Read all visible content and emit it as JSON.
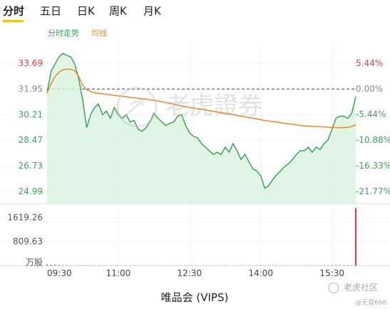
{
  "tabs": [
    "分时",
    "五日",
    "日K",
    "周K",
    "月K"
  ],
  "watermark": "老虎證券",
  "footer": "唯品会 (VIPS)",
  "brand": "老虎社区",
  "user": "@无双666",
  "chart_data": [
    {
      "type": "line",
      "categories": [
        "09:30",
        null,
        null,
        null,
        null,
        null,
        null,
        null,
        null,
        null,
        null,
        null,
        null,
        null,
        null,
        null,
        null,
        null,
        "11:00",
        null,
        null,
        null,
        null,
        null,
        null,
        null,
        null,
        null,
        null,
        null,
        null,
        null,
        null,
        null,
        null,
        null,
        "12:30",
        null,
        null,
        null,
        null,
        null,
        null,
        null,
        null,
        null,
        null,
        null,
        null,
        null,
        null,
        null,
        null,
        null,
        "14:00",
        null,
        null,
        null,
        null,
        null,
        null,
        null,
        null,
        null,
        null,
        null,
        null,
        null,
        null,
        null,
        null,
        null,
        "15:30",
        null,
        null,
        null,
        null,
        null,
        null
      ],
      "series": [
        {
          "name": "分时走势",
          "color": "#3aa55a",
          "fill": "#d9f2de",
          "values": [
            31.69,
            33.15,
            33.64,
            34.13,
            34.37,
            34.23,
            34.13,
            33.64,
            32.66,
            31.2,
            29.34,
            30.22,
            30.71,
            30.95,
            30.22,
            30.46,
            29.98,
            30.71,
            30.22,
            29.98,
            30.22,
            29.73,
            29.83,
            29.24,
            29.1,
            29.34,
            29.73,
            30.32,
            29.98,
            29.73,
            29.49,
            29.63,
            29.73,
            30.12,
            30.22,
            29.49,
            29.0,
            28.75,
            28.66,
            28.27,
            28.02,
            27.78,
            27.53,
            27.68,
            27.53,
            28.02,
            27.68,
            28.27,
            27.78,
            27.19,
            27.53,
            27.04,
            26.55,
            26.41,
            26.07,
            25.24,
            25.43,
            25.82,
            26.16,
            26.41,
            26.7,
            26.9,
            27.19,
            27.53,
            27.78,
            27.78,
            28.02,
            27.68,
            28.02,
            27.87,
            28.27,
            28.51,
            29.24,
            29.98,
            30.12,
            30.12,
            29.98,
            30.32,
            31.44
          ]
        },
        {
          "name": "均线",
          "color": "#e8892b",
          "values": [
            31.69,
            32.3,
            32.8,
            33.1,
            33.25,
            33.3,
            33.3,
            33.2,
            32.8,
            32.2,
            31.9,
            31.8,
            31.7,
            31.67,
            31.64,
            31.6,
            31.56,
            31.53,
            31.5,
            31.47,
            31.43,
            31.4,
            31.37,
            31.33,
            31.3,
            31.27,
            31.23,
            31.2,
            31.15,
            31.09,
            31.04,
            30.98,
            30.93,
            30.87,
            30.82,
            30.76,
            30.71,
            30.67,
            30.62,
            30.58,
            30.54,
            30.49,
            30.45,
            30.41,
            30.36,
            30.32,
            30.27,
            30.22,
            30.17,
            30.12,
            30.08,
            30.03,
            29.98,
            29.93,
            29.88,
            29.83,
            29.79,
            29.75,
            29.72,
            29.68,
            29.64,
            29.6,
            29.57,
            29.53,
            29.49,
            29.47,
            29.46,
            29.44,
            29.42,
            29.41,
            29.39,
            29.37,
            29.36,
            29.34,
            29.34,
            29.35,
            29.37,
            29.42,
            29.54
          ]
        }
      ],
      "ylim": [
        24.2,
        34.6
      ],
      "yticks": [
        33.69,
        31.95,
        30.21,
        28.47,
        26.73,
        24.99
      ],
      "reference": 31.95,
      "y2lim": [
        -24.26,
        8.29
      ],
      "y2ticks": [
        {
          "value": 5.44,
          "label": "5.44%"
        },
        {
          "value": 0,
          "label": "0.00%"
        },
        {
          "value": -5.44,
          "label": "-5.44%"
        },
        {
          "value": -10.88,
          "label": "-10.88%"
        },
        {
          "value": -16.33,
          "label": "-16.33%"
        },
        {
          "value": -21.77,
          "label": "-21.77%"
        }
      ],
      "up_color": "#e03c3c",
      "flat_color": "#888888",
      "down_color": "#3aa55a",
      "grid": true
    },
    {
      "type": "bar",
      "values": [
        40,
        30,
        25,
        20,
        15,
        14,
        12,
        10,
        12,
        15,
        14,
        10,
        9,
        8,
        10,
        9,
        8,
        9,
        7,
        8,
        7,
        9,
        8,
        7,
        8,
        7,
        6,
        8,
        7,
        6,
        7,
        6,
        7,
        8,
        6,
        7,
        8,
        7,
        6,
        8,
        7,
        8,
        9,
        7,
        8,
        9,
        8,
        7,
        9,
        8,
        9,
        10,
        9,
        10,
        11,
        12,
        10,
        9,
        8,
        9,
        8,
        9,
        8,
        9,
        8,
        9,
        10,
        9,
        10,
        11,
        12,
        13,
        14,
        15,
        14,
        15,
        16,
        18,
        1950
      ],
      "ylim": [
        0,
        1980
      ],
      "yticks": [
        1619.26,
        809.63,
        {
          "value": 0,
          "label": "万股"
        }
      ],
      "up_color": "#e03c3c",
      "down_color": "#3aa55a",
      "grid": true
    }
  ]
}
